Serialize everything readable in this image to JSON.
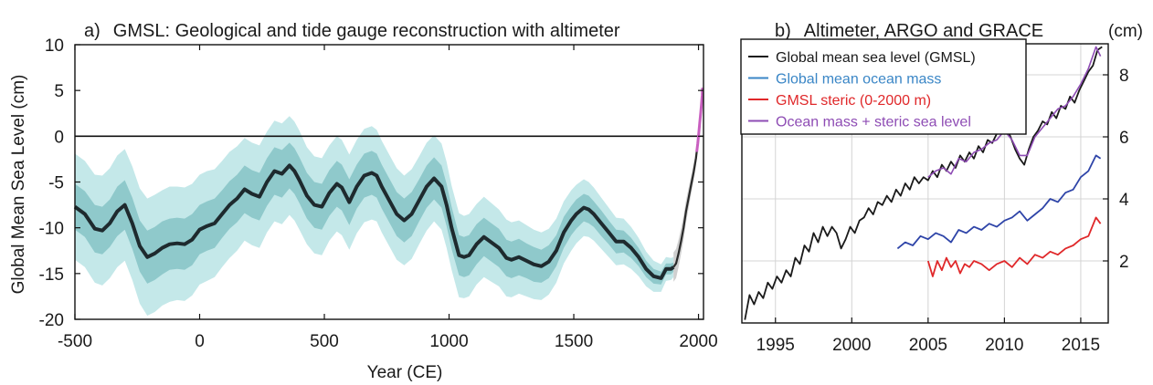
{
  "chart_data": [
    {
      "panel": "a)",
      "type": "line",
      "title": "GMSL: Geological and tide gauge reconstruction with altimeter",
      "xlabel": "Year (CE)",
      "ylabel": "Global Mean Sea Level (cm)",
      "xlim": [
        -500,
        2020
      ],
      "ylim": [
        -20,
        10
      ],
      "xticks": [
        -500,
        0,
        500,
        1000,
        1500,
        2000
      ],
      "yticks": [
        -20,
        -15,
        -10,
        -5,
        0,
        5,
        10
      ],
      "zero_line": true,
      "colors": {
        "central": "#1e2a2e",
        "inner_band": "#8fc9cb",
        "outer_band": "#c4e8e9",
        "instrumental": "#2a2a2a",
        "instrumental_band": "#cfcfcf",
        "altimeter": "#c95fc0"
      },
      "central": {
        "x": [
          -500,
          -460,
          -420,
          -390,
          -360,
          -330,
          -300,
          -270,
          -240,
          -210,
          -180,
          -150,
          -120,
          -90,
          -60,
          -30,
          0,
          30,
          60,
          90,
          120,
          150,
          180,
          210,
          240,
          270,
          300,
          330,
          360,
          380,
          400,
          430,
          460,
          490,
          520,
          550,
          570,
          600,
          630,
          660,
          690,
          710,
          730,
          760,
          790,
          820,
          850,
          880,
          910,
          940,
          970,
          990,
          1010,
          1040,
          1060,
          1080,
          1110,
          1140,
          1170,
          1200,
          1230,
          1250,
          1280,
          1310,
          1340,
          1370,
          1400,
          1430,
          1460,
          1490,
          1510,
          1540,
          1560,
          1580,
          1610,
          1640,
          1670,
          1700,
          1730,
          1760,
          1790,
          1820,
          1850,
          1870,
          1890,
          1900
        ],
        "y": [
          -7.7,
          -8.5,
          -10.1,
          -10.3,
          -9.5,
          -8.2,
          -7.5,
          -9.5,
          -12,
          -13.2,
          -12.8,
          -12.2,
          -11.8,
          -11.7,
          -11.8,
          -11.3,
          -10.2,
          -9.8,
          -9.5,
          -8.5,
          -7.5,
          -6.8,
          -5.8,
          -6.3,
          -6.6,
          -5,
          -3.8,
          -4.1,
          -3.2,
          -3.8,
          -4.8,
          -6.5,
          -7.5,
          -7.7,
          -6.2,
          -5.2,
          -5.6,
          -7.2,
          -5.5,
          -4.3,
          -4,
          -4.3,
          -5.5,
          -7,
          -8.5,
          -9.2,
          -8.5,
          -7,
          -5.5,
          -4.6,
          -5.5,
          -7.5,
          -10,
          -13,
          -13.2,
          -13,
          -11.8,
          -11,
          -11.6,
          -12.2,
          -13.3,
          -13.5,
          -13.2,
          -13.6,
          -14,
          -14.2,
          -13.7,
          -12.5,
          -10.5,
          -9.2,
          -8.5,
          -7.8,
          -8,
          -8.5,
          -9.5,
          -10.5,
          -11.5,
          -11.5,
          -12.2,
          -13.2,
          -14.5,
          -15.3,
          -15.5,
          -14.5,
          -14.5,
          -14.3
        ]
      },
      "inner_band_halfwidth": [
        2.5,
        2.5,
        2.6,
        2.6,
        2.6,
        2.7,
        2.7,
        2.8,
        2.8,
        2.9,
        2.9,
        2.9,
        2.8,
        2.8,
        2.8,
        2.8,
        2.7,
        2.7,
        2.7,
        2.6,
        2.6,
        2.6,
        2.6,
        2.6,
        2.6,
        2.6,
        2.6,
        2.6,
        2.5,
        2.5,
        2.5,
        2.5,
        2.5,
        2.5,
        2.5,
        2.5,
        2.5,
        2.5,
        2.4,
        2.4,
        2.4,
        2.4,
        2.4,
        2.4,
        2.4,
        2.4,
        2.4,
        2.3,
        2.3,
        2.3,
        2.3,
        2.3,
        2.3,
        2.2,
        2.2,
        2.2,
        2.2,
        2.1,
        2.1,
        2.1,
        2,
        2,
        2,
        1.9,
        1.9,
        1.8,
        1.8,
        1.7,
        1.7,
        1.6,
        1.6,
        1.5,
        1.5,
        1.4,
        1.4,
        1.3,
        1.3,
        1.2,
        1.1,
        1,
        0.9,
        0.8,
        0.7,
        0.6,
        0.6,
        0.5
      ],
      "outer_band_halfwidth": [
        5.8,
        5.8,
        5.9,
        6,
        6,
        6.1,
        6.1,
        6.2,
        6.3,
        6.4,
        6.4,
        6.3,
        6.3,
        6.2,
        6.2,
        6.1,
        6,
        6,
        5.9,
        5.8,
        5.8,
        5.7,
        5.6,
        5.6,
        5.6,
        5.5,
        5.5,
        5.5,
        5.4,
        5.4,
        5.4,
        5.3,
        5.3,
        5.3,
        5.2,
        5.2,
        5.2,
        5.2,
        5.1,
        5.1,
        5.1,
        5,
        5,
        5,
        5,
        4.9,
        4.9,
        4.8,
        4.8,
        4.7,
        4.7,
        4.7,
        4.6,
        4.6,
        4.5,
        4.5,
        4.4,
        4.4,
        4.3,
        4.2,
        4.2,
        4.1,
        4,
        3.9,
        3.8,
        3.7,
        3.6,
        3.5,
        3.4,
        3.3,
        3.2,
        3.1,
        3,
        2.9,
        2.8,
        2.7,
        2.6,
        2.5,
        2.3,
        2.1,
        1.9,
        1.7,
        1.5,
        1.3,
        1.2,
        1.1
      ],
      "instrumental": {
        "x": [
          1900,
          1910,
          1920,
          1930,
          1940,
          1950,
          1960,
          1970,
          1980,
          1990,
          1993
        ],
        "y": [
          -14.3,
          -13.9,
          -12.8,
          -11.5,
          -10,
          -8.2,
          -6.8,
          -5.4,
          -4,
          -2.4,
          -1.7
        ]
      },
      "instrumental_band_halfwidth": [
        1.6,
        1.6,
        1.5,
        1.4,
        1.3,
        1.2,
        1.1,
        1,
        0.9,
        0.8,
        0.7
      ],
      "altimeter": {
        "x": [
          1993,
          1997,
          2001,
          2005,
          2009,
          2012,
          2015,
          2016
        ],
        "y": [
          -1.7,
          -0.8,
          0.3,
          1.5,
          2.6,
          3.5,
          4.5,
          5.3
        ]
      }
    },
    {
      "panel": "b)",
      "type": "line",
      "title": "Altimeter, ARGO and GRACE",
      "ylabel": "(cm)",
      "xlim": [
        1992.8,
        2016.8
      ],
      "ylim": [
        0,
        9
      ],
      "xticks": [
        1995,
        2000,
        2005,
        2010,
        2015
      ],
      "yticks": [
        2,
        4,
        6,
        8
      ],
      "grid": true,
      "legend_position": "top-left",
      "series": [
        {
          "name": "Global mean sea level (GMSL)",
          "color": "#1a1a1a",
          "x": [
            1993,
            1993.3,
            1993.6,
            1993.9,
            1994.2,
            1994.5,
            1994.8,
            1995.1,
            1995.4,
            1995.7,
            1996,
            1996.3,
            1996.6,
            1996.9,
            1997.2,
            1997.5,
            1997.8,
            1998.1,
            1998.4,
            1998.7,
            1999,
            1999.3,
            1999.6,
            1999.9,
            2000.2,
            2000.5,
            2000.8,
            2001.1,
            2001.4,
            2001.7,
            2002,
            2002.3,
            2002.6,
            2002.9,
            2003.2,
            2003.5,
            2003.8,
            2004.1,
            2004.4,
            2004.7,
            2005,
            2005.3,
            2005.6,
            2005.9,
            2006.2,
            2006.5,
            2006.8,
            2007.1,
            2007.4,
            2007.7,
            2008,
            2008.3,
            2008.6,
            2008.9,
            2009.2,
            2009.5,
            2009.8,
            2010.1,
            2010.4,
            2010.7,
            2011,
            2011.3,
            2011.6,
            2011.9,
            2012.2,
            2012.5,
            2012.8,
            2013.1,
            2013.4,
            2013.7,
            2014,
            2014.3,
            2014.6,
            2014.9,
            2015.2,
            2015.5,
            2015.8,
            2016.1,
            2016.4
          ],
          "y": [
            0.1,
            0.9,
            0.6,
            1,
            0.8,
            1.3,
            1.1,
            1.5,
            1.3,
            1.7,
            1.5,
            2.1,
            1.9,
            2.5,
            2.3,
            2.9,
            2.6,
            3.1,
            2.8,
            3.1,
            2.9,
            2.4,
            2.7,
            3.1,
            2.9,
            3.3,
            3.4,
            3.7,
            3.5,
            3.9,
            3.8,
            4.1,
            3.9,
            4.3,
            4.1,
            4.5,
            4.3,
            4.7,
            4.5,
            4.7,
            4.6,
            4.9,
            4.7,
            5.1,
            4.9,
            5.2,
            5,
            5.4,
            5.2,
            5.5,
            5.3,
            5.7,
            5.5,
            5.9,
            5.8,
            6.1,
            6.2,
            6.3,
            6,
            5.6,
            5.3,
            5.1,
            5.6,
            6,
            6.2,
            6.5,
            6.4,
            6.8,
            6.6,
            7,
            6.9,
            7.3,
            7.1,
            7.5,
            7.8,
            8.1,
            8.3,
            8.8,
            8.9
          ]
        },
        {
          "name": "Global mean ocean mass",
          "color": "#2e44a8",
          "legend_color": "#3a86c6",
          "x": [
            2003,
            2003.5,
            2004,
            2004.5,
            2005,
            2005.5,
            2006,
            2006.5,
            2007,
            2007.5,
            2008,
            2008.5,
            2009,
            2009.5,
            2010,
            2010.5,
            2011,
            2011.5,
            2012,
            2012.5,
            2013,
            2013.5,
            2014,
            2014.5,
            2015,
            2015.5,
            2016,
            2016.3
          ],
          "y": [
            2.4,
            2.6,
            2.5,
            2.8,
            2.7,
            2.9,
            2.8,
            2.6,
            3,
            2.9,
            3.1,
            3,
            3.2,
            3.1,
            3.3,
            3.4,
            3.6,
            3.3,
            3.5,
            3.7,
            4,
            3.9,
            4.2,
            4.3,
            4.7,
            4.9,
            5.4,
            5.3
          ]
        },
        {
          "name": "GMSL steric (0-2000 m)",
          "color": "#e0282a",
          "x": [
            2005,
            2005.3,
            2005.6,
            2005.9,
            2006.2,
            2006.5,
            2006.8,
            2007.1,
            2007.4,
            2007.7,
            2008,
            2008.5,
            2009,
            2009.5,
            2010,
            2010.5,
            2011,
            2011.5,
            2012,
            2012.5,
            2013,
            2013.5,
            2014,
            2014.5,
            2015,
            2015.5,
            2016,
            2016.3
          ],
          "y": [
            2,
            1.5,
            2,
            1.7,
            2.1,
            1.8,
            2,
            1.6,
            1.9,
            1.8,
            2,
            1.9,
            1.7,
            1.9,
            2,
            1.8,
            2.1,
            1.9,
            2.2,
            2.1,
            2.3,
            2.2,
            2.4,
            2.5,
            2.7,
            2.8,
            3.4,
            3.2
          ]
        },
        {
          "name": "Ocean mass + steric sea level",
          "color": "#8e4cb4",
          "x": [
            2005,
            2005.5,
            2006,
            2006.5,
            2007,
            2007.5,
            2008,
            2008.5,
            2009,
            2009.5,
            2010,
            2010.5,
            2011,
            2011.5,
            2012,
            2012.5,
            2013,
            2013.5,
            2014,
            2014.5,
            2015,
            2015.5,
            2016,
            2016.3
          ],
          "y": [
            4.7,
            4.9,
            5,
            4.8,
            5.3,
            5.2,
            5.5,
            5.6,
            5.8,
            5.9,
            6.2,
            5.9,
            5.4,
            5.4,
            6,
            6.3,
            6.6,
            6.9,
            7,
            7.3,
            7.7,
            8.2,
            8.9,
            8.6
          ]
        }
      ]
    }
  ]
}
